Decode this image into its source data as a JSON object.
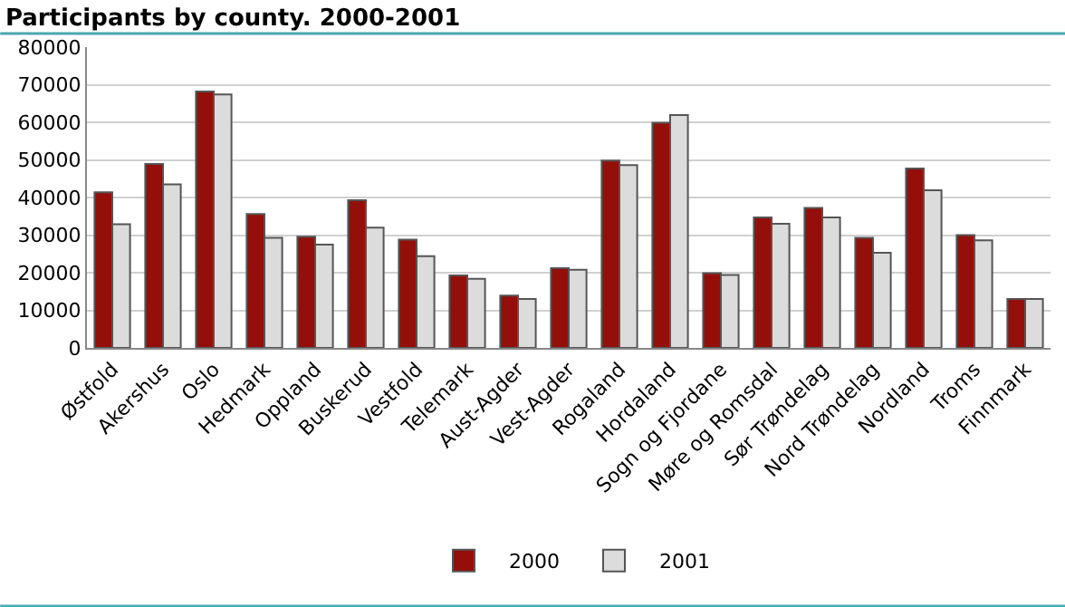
{
  "chart_data": {
    "type": "bar",
    "title": "Participants by county. 2000-2001",
    "categories": [
      "Østfold",
      "Akershus",
      "Oslo",
      "Hedmark",
      "Oppland",
      "Buskerud",
      "Vestfold",
      "Telemark",
      "Aust-Agder",
      "Vest-Agder",
      "Rogaland",
      "Hordaland",
      "Sogn og Fjordane",
      "Møre og Romsdal",
      "Sør Trøndelag",
      "Nord Trøndelag",
      "Nordland",
      "Troms",
      "Finnmark"
    ],
    "series": [
      {
        "name": "2000",
        "color": "#940f09",
        "values": [
          41400,
          48900,
          68200,
          35600,
          29600,
          39300,
          28800,
          19300,
          13900,
          21200,
          49800,
          59900,
          19900,
          34700,
          37200,
          29300,
          47700,
          30000,
          13000
        ]
      },
      {
        "name": "2001",
        "color": "#dcdcdc",
        "values": [
          32900,
          43500,
          67400,
          29300,
          27500,
          32000,
          24400,
          18400,
          13000,
          20800,
          48600,
          61900,
          19400,
          33000,
          34700,
          25300,
          41900,
          28600,
          13000
        ]
      }
    ],
    "ylim": [
      0,
      80000
    ],
    "yticks": [
      0,
      10000,
      20000,
      30000,
      40000,
      50000,
      60000,
      70000,
      80000
    ],
    "grid": "y",
    "legend": "bottom"
  }
}
